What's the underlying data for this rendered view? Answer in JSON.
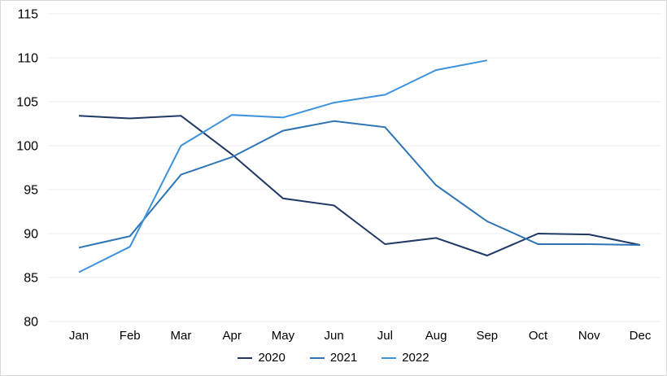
{
  "chart_data": {
    "type": "line",
    "title": "",
    "xlabel": "",
    "ylabel": "",
    "categories": [
      "Jan",
      "Feb",
      "Mar",
      "Apr",
      "May",
      "Jun",
      "Jul",
      "Aug",
      "Sep",
      "Oct",
      "Nov",
      "Dec"
    ],
    "series": [
      {
        "name": "2020",
        "color": "#1F3864",
        "values": [
          103.4,
          103.1,
          103.4,
          99.0,
          94.0,
          93.2,
          88.8,
          89.5,
          87.5,
          90.0,
          89.9,
          88.7
        ]
      },
      {
        "name": "2021",
        "color": "#2E74B5",
        "values": [
          88.4,
          89.7,
          96.7,
          98.7,
          101.7,
          102.8,
          102.1,
          95.5,
          91.4,
          88.8,
          88.8,
          88.7
        ]
      },
      {
        "name": "2022",
        "color": "#3E92DC",
        "values": [
          85.6,
          88.5,
          100.0,
          103.5,
          103.2,
          104.9,
          105.8,
          108.6,
          109.7,
          null,
          null,
          null
        ]
      }
    ],
    "ylim": [
      80,
      115
    ],
    "yticks": [
      80,
      85,
      90,
      95,
      100,
      105,
      110,
      115
    ],
    "grid": true,
    "gridline_color": "#EDEDED",
    "axis_text_color": "#000000",
    "background": "#FFFFFF",
    "legend_position": "bottom"
  }
}
